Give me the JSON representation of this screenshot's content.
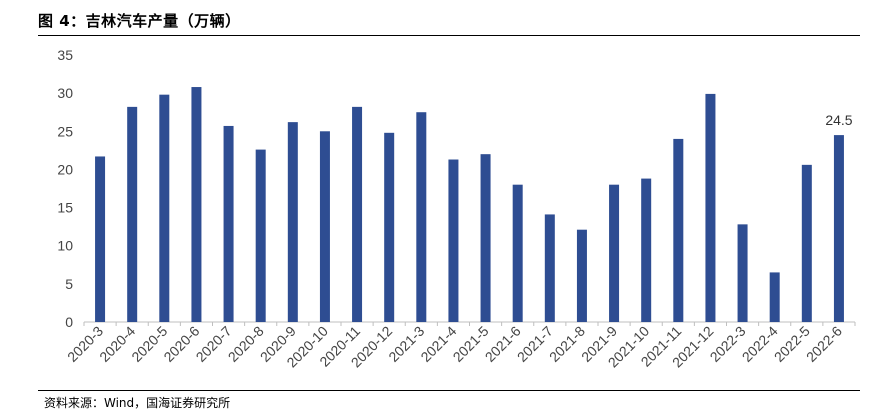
{
  "header": {
    "title": "图 4：吉林汽车产量（万辆）"
  },
  "footer": {
    "source": "资料来源：Wind，国海证券研究所"
  },
  "colors": {
    "bar": "#2e4d92",
    "axis": "#bfbfbf",
    "text": "#444444"
  },
  "chart_data": {
    "type": "bar",
    "title": "吉林汽车产量（万辆）",
    "categories": [
      "2020-3",
      "2020-4",
      "2020-5",
      "2020-6",
      "2020-7",
      "2020-8",
      "2020-9",
      "2020-10",
      "2020-11",
      "2020-12",
      "2021-3",
      "2021-4",
      "2021-5",
      "2021-6",
      "2021-7",
      "2021-8",
      "2021-9",
      "2021-10",
      "2021-11",
      "2021-12",
      "2022-3",
      "2022-4",
      "2022-5",
      "2022-6"
    ],
    "values": [
      21.7,
      28.2,
      29.8,
      30.8,
      25.7,
      22.6,
      26.2,
      25.0,
      28.2,
      24.8,
      27.5,
      21.3,
      22.0,
      18.0,
      14.1,
      12.1,
      18.0,
      18.8,
      24.0,
      29.9,
      12.8,
      6.5,
      20.6,
      24.5
    ],
    "yticks": [
      "0",
      "5",
      "10",
      "15",
      "20",
      "25",
      "30",
      "35"
    ],
    "ylim": [
      0,
      35
    ],
    "data_labels": [
      {
        "index": 23,
        "text": "24.5"
      }
    ],
    "grid": false,
    "xlabel": "",
    "ylabel": ""
  }
}
